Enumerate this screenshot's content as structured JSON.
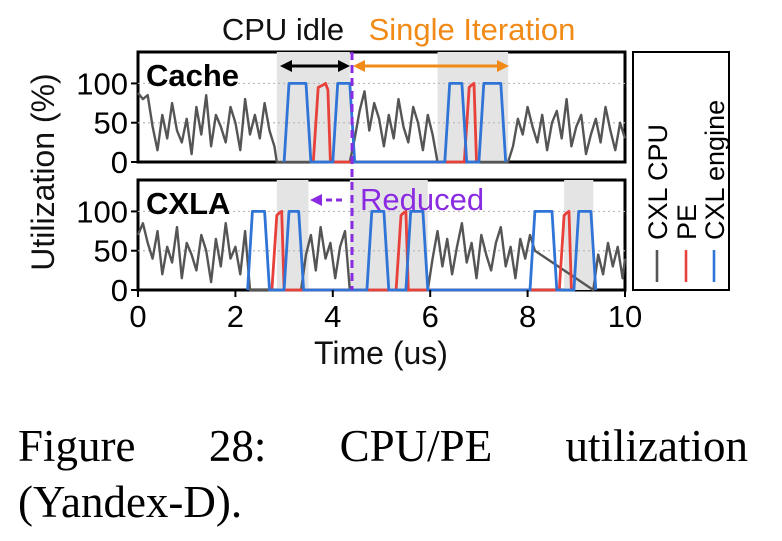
{
  "chart_data": {
    "type": "line",
    "xlabel": "Time (us)",
    "ylabel": "Utilization (%)",
    "xlim": [
      0,
      10
    ],
    "ylim": [
      0,
      140
    ],
    "xticks": [
      "0",
      "2",
      "4",
      "6",
      "8",
      "10"
    ],
    "yticks": [
      "0",
      "50",
      "100"
    ],
    "grid": "horizontal-dotted",
    "legend_position": "right",
    "legend": [
      {
        "label": "CXL CPU",
        "color": "#555555"
      },
      {
        "label": "PE",
        "color": "#e8403a"
      },
      {
        "label": "CXL engine",
        "color": "#2f74d6"
      }
    ],
    "annotations": {
      "cpu_idle": "CPU idle",
      "single_iteration": "Single Iteration",
      "reduced": "Reduced"
    },
    "panels": [
      {
        "name": "Cache",
        "shaded_spans": [
          [
            2.85,
            4.35
          ],
          [
            6.15,
            7.6
          ]
        ],
        "series": [
          {
            "name": "CXL CPU",
            "x": [
              0,
              0.1,
              0.2,
              0.3,
              0.4,
              0.5,
              0.6,
              0.7,
              0.8,
              0.9,
              1.0,
              1.1,
              1.2,
              1.3,
              1.4,
              1.5,
              1.6,
              1.7,
              1.8,
              1.9,
              2.0,
              2.1,
              2.2,
              2.3,
              2.4,
              2.5,
              2.6,
              2.7,
              2.8,
              2.85,
              4.35,
              4.45,
              4.55,
              4.65,
              4.75,
              4.85,
              4.95,
              5.05,
              5.15,
              5.25,
              5.35,
              5.45,
              5.55,
              5.65,
              5.75,
              5.85,
              5.95,
              6.05,
              6.15,
              7.6,
              7.7,
              7.8,
              7.9,
              8.0,
              8.1,
              8.2,
              8.3,
              8.4,
              8.5,
              8.6,
              8.7,
              8.8,
              8.9,
              9.0,
              9.1,
              9.2,
              9.3,
              9.4,
              9.5,
              9.6,
              9.7,
              9.8,
              9.9,
              10.0
            ],
            "y": [
              88,
              80,
              85,
              45,
              15,
              60,
              30,
              75,
              40,
              25,
              55,
              10,
              70,
              35,
              85,
              20,
              60,
              45,
              25,
              70,
              50,
              15,
              80,
              35,
              60,
              30,
              75,
              40,
              20,
              0,
              0,
              30,
              65,
              90,
              40,
              75,
              55,
              20,
              60,
              30,
              80,
              45,
              25,
              70,
              50,
              15,
              60,
              35,
              0,
              0,
              20,
              55,
              35,
              70,
              45,
              25,
              60,
              15,
              50,
              65,
              30,
              80,
              20,
              45,
              60,
              10,
              35,
              55,
              25,
              70,
              40,
              15,
              50,
              30
            ]
          },
          {
            "name": "PE",
            "x": [
              3.6,
              3.7,
              3.8,
              3.85,
              3.9,
              3.95,
              6.7,
              6.8,
              6.85,
              6.9,
              6.95
            ],
            "y": [
              0,
              95,
              98,
              100,
              92,
              0,
              0,
              95,
              98,
              100,
              0
            ]
          },
          {
            "name": "CXL engine",
            "x": [
              3.0,
              3.1,
              3.45,
              3.55,
              4.0,
              4.1,
              4.35,
              4.45,
              6.3,
              6.4,
              6.65,
              6.75,
              7.0,
              7.1,
              7.45,
              7.55
            ],
            "y": [
              0,
              100,
              100,
              0,
              0,
              100,
              100,
              0,
              0,
              100,
              100,
              0,
              0,
              100,
              100,
              0
            ]
          }
        ]
      },
      {
        "name": "CXLA",
        "shaded_spans": [
          [
            2.85,
            3.5
          ],
          [
            4.35,
            5.95
          ],
          [
            8.75,
            9.35
          ]
        ],
        "series": [
          {
            "name": "CXL CPU",
            "x": [
              0,
              0.1,
              0.2,
              0.3,
              0.4,
              0.5,
              0.6,
              0.7,
              0.8,
              0.9,
              1.0,
              1.1,
              1.2,
              1.3,
              1.4,
              1.5,
              1.6,
              1.7,
              1.8,
              1.9,
              2.0,
              2.1,
              2.2,
              2.3,
              3.35,
              3.45,
              3.55,
              3.65,
              3.75,
              3.85,
              3.95,
              4.05,
              4.15,
              4.25,
              4.35,
              5.95,
              6.05,
              6.15,
              6.25,
              6.35,
              6.45,
              6.55,
              6.65,
              6.75,
              6.85,
              6.95,
              7.05,
              7.15,
              7.25,
              7.35,
              7.45,
              7.55,
              7.65,
              7.75,
              7.85,
              7.95,
              8.05,
              8.15,
              9.35,
              9.45,
              9.55,
              9.65,
              9.75,
              9.85,
              9.95,
              10.0
            ],
            "y": [
              70,
              85,
              60,
              40,
              75,
              20,
              55,
              35,
              80,
              15,
              60,
              45,
              25,
              70,
              50,
              10,
              65,
              30,
              85,
              40,
              55,
              20,
              75,
              0,
              0,
              45,
              70,
              25,
              80,
              40,
              60,
              15,
              55,
              75,
              0,
              0,
              40,
              75,
              30,
              65,
              20,
              55,
              85,
              35,
              60,
              15,
              70,
              45,
              25,
              60,
              80,
              30,
              55,
              15,
              65,
              40,
              70,
              50,
              0,
              45,
              20,
              60,
              30,
              55,
              15,
              40
            ]
          },
          {
            "name": "PE",
            "x": [
              2.75,
              2.85,
              2.9,
              2.95,
              3.0,
              5.3,
              5.4,
              5.45,
              5.5,
              5.55,
              8.65,
              8.75,
              8.8,
              8.85,
              8.9
            ],
            "y": [
              0,
              95,
              98,
              100,
              0,
              0,
              95,
              98,
              100,
              0,
              0,
              95,
              98,
              100,
              0
            ]
          },
          {
            "name": "CXL engine",
            "x": [
              2.25,
              2.35,
              2.6,
              2.7,
              3.0,
              3.1,
              3.3,
              3.4,
              4.7,
              4.8,
              5.05,
              5.15,
              5.5,
              5.6,
              5.85,
              5.95,
              8.05,
              8.15,
              8.5,
              8.6,
              8.95,
              9.05,
              9.3,
              9.4
            ],
            "y": [
              0,
              100,
              100,
              0,
              0,
              100,
              100,
              0,
              0,
              100,
              100,
              0,
              0,
              100,
              100,
              0,
              0,
              100,
              100,
              0,
              0,
              100,
              100,
              0
            ]
          }
        ]
      }
    ]
  },
  "caption": {
    "line1": [
      "Figure",
      "28:",
      "CPU/PE",
      "utilization"
    ],
    "line2": "(Yandex-D)."
  }
}
